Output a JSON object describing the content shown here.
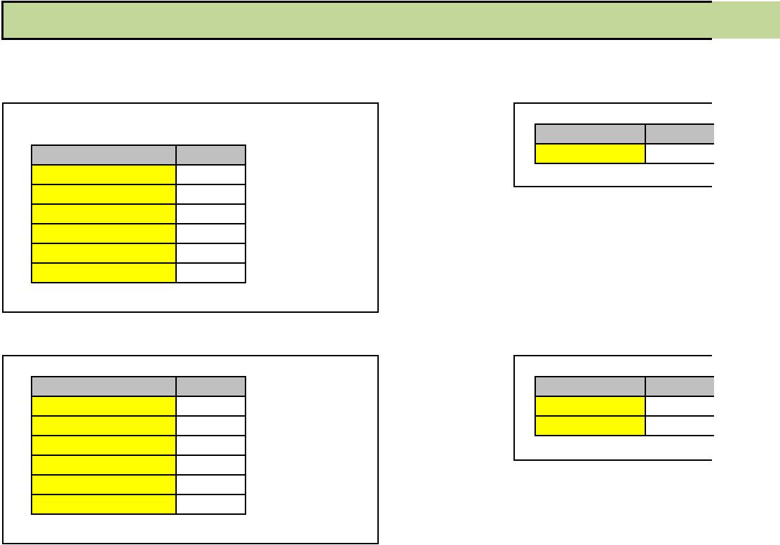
{
  "colors": {
    "banner": "#c4d79b",
    "header_cell": "#c0c0c0",
    "label_cell": "#ffff00",
    "value_cell": "#ffffff"
  },
  "banner": {
    "title": ""
  },
  "tables": [
    {
      "header": [
        "",
        ""
      ],
      "rows": [
        [
          "",
          ""
        ],
        [
          "",
          ""
        ],
        [
          "",
          ""
        ],
        [
          "",
          ""
        ],
        [
          "",
          ""
        ],
        [
          "",
          ""
        ]
      ]
    },
    {
      "header": [
        "",
        ""
      ],
      "rows": [
        [
          "",
          ""
        ]
      ]
    },
    {
      "header": [
        "",
        ""
      ],
      "rows": [
        [
          "",
          ""
        ],
        [
          "",
          ""
        ],
        [
          "",
          ""
        ],
        [
          "",
          ""
        ],
        [
          "",
          ""
        ],
        [
          "",
          ""
        ]
      ]
    },
    {
      "header": [
        "",
        ""
      ],
      "rows": [
        [
          "",
          ""
        ],
        [
          "",
          ""
        ]
      ]
    }
  ]
}
